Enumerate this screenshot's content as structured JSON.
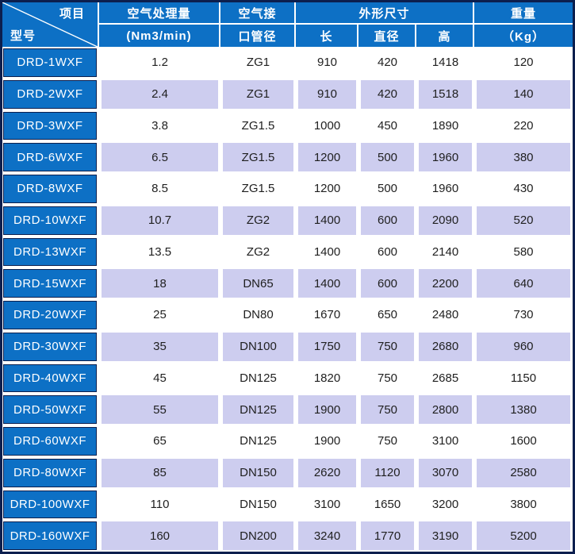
{
  "colors": {
    "blue": "#0d70c5",
    "lavender": "#cdcdef",
    "dark": "#0c1f4e",
    "header_text": "#ffffff",
    "data_text": "#1f1f1f"
  },
  "table": {
    "header": {
      "corner_top": "项目",
      "corner_bottom": "型号",
      "airflow_title": "空气处理量",
      "airflow_unit": "(Nm3/min)",
      "pipe_line1": "空气接",
      "pipe_line2": "口管径",
      "dims_title": "外形尺寸",
      "dim_length": "长",
      "dim_diameter": "直径",
      "dim_height": "高",
      "weight_title": "重量",
      "weight_unit": "（Kg）"
    },
    "rows": [
      {
        "model": "DRD-1WXF",
        "airflow": "1.2",
        "pipe": "ZG1",
        "length": "910",
        "diameter": "420",
        "height": "1418",
        "weight": "120"
      },
      {
        "model": "DRD-2WXF",
        "airflow": "2.4",
        "pipe": "ZG1",
        "length": "910",
        "diameter": "420",
        "height": "1518",
        "weight": "140"
      },
      {
        "model": "DRD-3WXF",
        "airflow": "3.8",
        "pipe": "ZG1.5",
        "length": "1000",
        "diameter": "450",
        "height": "1890",
        "weight": "220"
      },
      {
        "model": "DRD-6WXF",
        "airflow": "6.5",
        "pipe": "ZG1.5",
        "length": "1200",
        "diameter": "500",
        "height": "1960",
        "weight": "380"
      },
      {
        "model": "DRD-8WXF",
        "airflow": "8.5",
        "pipe": "ZG1.5",
        "length": "1200",
        "diameter": "500",
        "height": "1960",
        "weight": "430"
      },
      {
        "model": "DRD-10WXF",
        "airflow": "10.7",
        "pipe": "ZG2",
        "length": "1400",
        "diameter": "600",
        "height": "2090",
        "weight": "520"
      },
      {
        "model": "DRD-13WXF",
        "airflow": "13.5",
        "pipe": "ZG2",
        "length": "1400",
        "diameter": "600",
        "height": "2140",
        "weight": "580"
      },
      {
        "model": "DRD-15WXF",
        "airflow": "18",
        "pipe": "DN65",
        "length": "1400",
        "diameter": "600",
        "height": "2200",
        "weight": "640"
      },
      {
        "model": "DRD-20WXF",
        "airflow": "25",
        "pipe": "DN80",
        "length": "1670",
        "diameter": "650",
        "height": "2480",
        "weight": "730"
      },
      {
        "model": "DRD-30WXF",
        "airflow": "35",
        "pipe": "DN100",
        "length": "1750",
        "diameter": "750",
        "height": "2680",
        "weight": "960"
      },
      {
        "model": "DRD-40WXF",
        "airflow": "45",
        "pipe": "DN125",
        "length": "1820",
        "diameter": "750",
        "height": "2685",
        "weight": "1150"
      },
      {
        "model": "DRD-50WXF",
        "airflow": "55",
        "pipe": "DN125",
        "length": "1900",
        "diameter": "750",
        "height": "2800",
        "weight": "1380"
      },
      {
        "model": "DRD-60WXF",
        "airflow": "65",
        "pipe": "DN125",
        "length": "1900",
        "diameter": "750",
        "height": "3100",
        "weight": "1600"
      },
      {
        "model": "DRD-80WXF",
        "airflow": "85",
        "pipe": "DN150",
        "length": "2620",
        "diameter": "1120",
        "height": "3070",
        "weight": "2580"
      },
      {
        "model": "DRD-100WXF",
        "airflow": "110",
        "pipe": "DN150",
        "length": "3100",
        "diameter": "1650",
        "height": "3200",
        "weight": "3800"
      },
      {
        "model": "DRD-160WXF",
        "airflow": "160",
        "pipe": "DN200",
        "length": "3240",
        "diameter": "1770",
        "height": "3190",
        "weight": "5200"
      }
    ]
  }
}
